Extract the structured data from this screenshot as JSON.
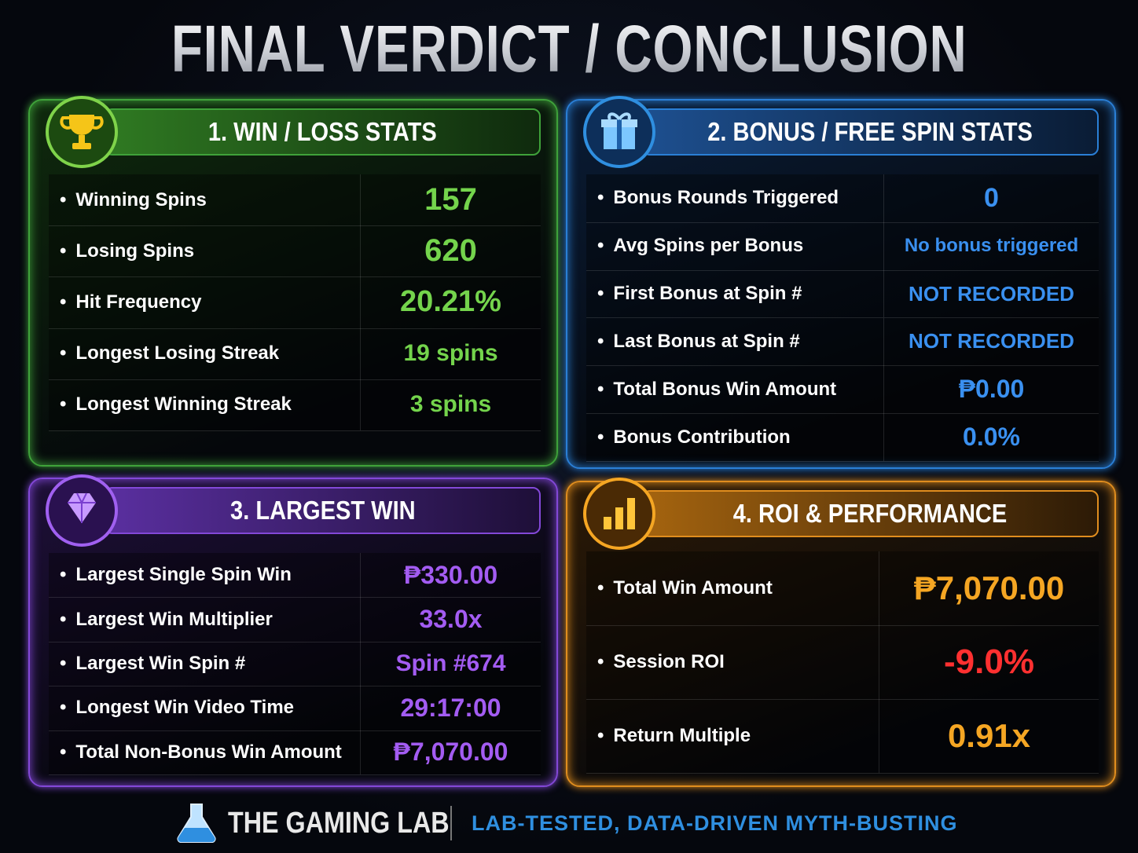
{
  "header": {
    "title": "FINAL VERDICT / CONCLUSION"
  },
  "panels": [
    {
      "title": "1. WIN / LOSS STATS",
      "rows": [
        [
          "Winning Spins",
          "157"
        ],
        [
          "Losing Spins",
          "620"
        ],
        [
          "Hit Frequency",
          "20.21%"
        ],
        [
          "Longest Losing Streak",
          "19 spins"
        ],
        [
          "Longest Winning Streak",
          "3 spins"
        ]
      ]
    },
    {
      "title": "2. BONUS / FREE SPIN STATS",
      "rows": [
        [
          "Bonus Rounds Triggered",
          "0"
        ],
        [
          "Avg Spins per Bonus",
          "No bonus triggered"
        ],
        [
          "First Bonus at Spin #",
          "NOT RECORDED"
        ],
        [
          "Last Bonus at Spin #",
          "NOT RECORDED"
        ],
        [
          "Total Bonus Win Amount",
          "₱0.00"
        ],
        [
          "Bonus Contribution",
          "0.0%"
        ]
      ]
    },
    {
      "title": "3. LARGEST WIN",
      "rows": [
        [
          "Largest Single Spin Win",
          "₱330.00"
        ],
        [
          "Largest Win Multiplier",
          "33.0x"
        ],
        [
          "Largest Win Spin #",
          "Spin #674"
        ],
        [
          "Longest Win Video Time",
          "29:17:00"
        ],
        [
          "Total Non-Bonus Win Amount",
          "₱7,070.00"
        ]
      ]
    },
    {
      "title": "4. ROI & PERFORMANCE",
      "rows": [
        [
          "Total Win Amount",
          "₱7,070.00"
        ],
        [
          "Session ROI",
          "-9.0%"
        ],
        [
          "Return Multiple",
          "0.91x"
        ]
      ]
    }
  ],
  "footer": {
    "brand": "THE GAMING LAB",
    "tagline": "LAB-TESTED, DATA-DRIVEN MYTH-BUSTING"
  }
}
